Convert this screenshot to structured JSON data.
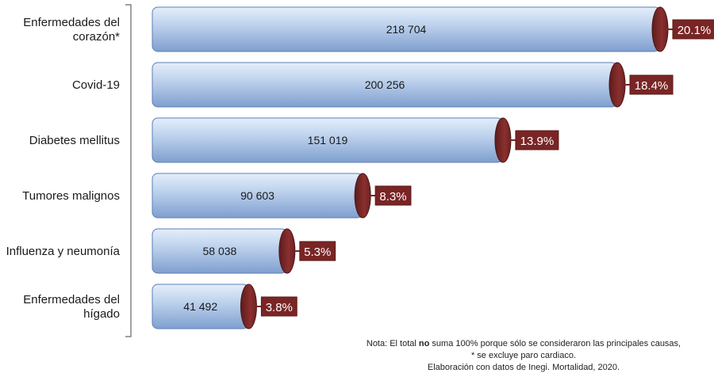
{
  "chart_data": {
    "type": "bar",
    "orientation": "horizontal",
    "categories": [
      [
        "Enfermedades del",
        "corazón*"
      ],
      [
        "Covid-19"
      ],
      [
        "Diabetes mellitus"
      ],
      [
        "Tumores malignos"
      ],
      [
        "Influenza y neumonía"
      ],
      [
        "Enfermedades del",
        "hígado"
      ]
    ],
    "values": [
      218704,
      200256,
      151019,
      90603,
      58038,
      41492
    ],
    "value_labels": [
      "218 704",
      "200 256",
      "151 019",
      "90 603",
      "58 038",
      "41 492"
    ],
    "percent_labels": [
      "20.1%",
      "18.4%",
      "13.9%",
      "8.3%",
      "5.3%",
      "3.8%"
    ],
    "title": "",
    "xlabel": "",
    "ylabel": "",
    "colors": {
      "bar_top": "#d9e6f6",
      "bar_bottom": "#86a8d6",
      "bar_outline": "#5b7fb5",
      "cap": "#7b2a2a",
      "cap_light": "#a33c3c",
      "badge": "#7a2525",
      "badge_text": "#ffffff"
    }
  },
  "note": {
    "line1_prefix": "Nota: El total ",
    "line1_bold": "no",
    "line1_suffix": " suma 100% porque sólo se consideraron las principales causas,",
    "line2": "* se excluye paro cardiaco.",
    "line3": "Elaboración con datos de Inegi. Mortalidad, 2020."
  }
}
